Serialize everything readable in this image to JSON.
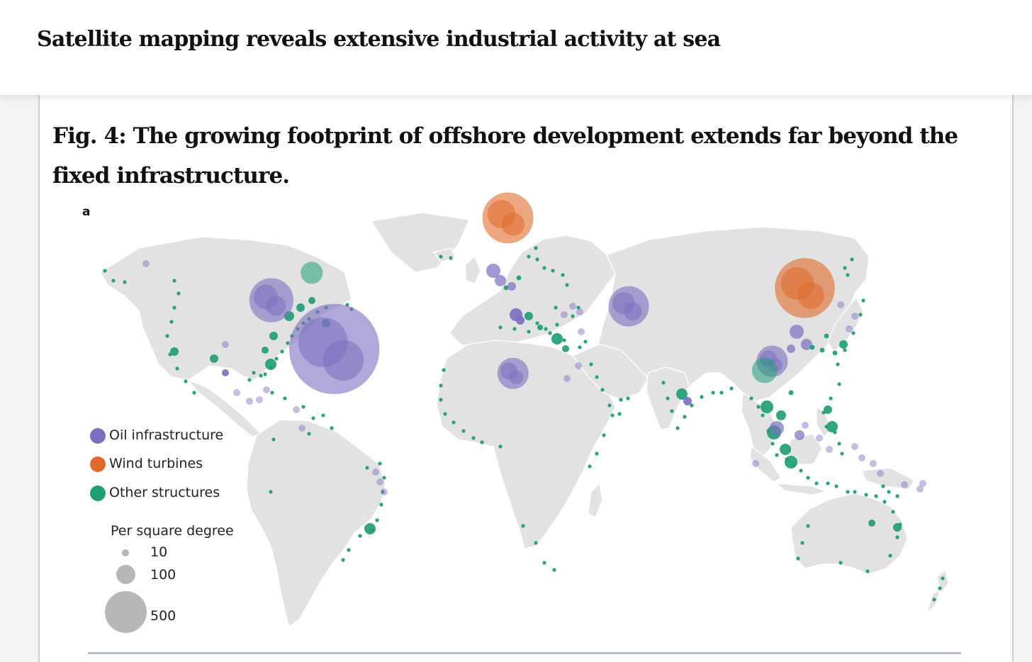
{
  "article_title": "Satellite mapping reveals extensive industrial activity at sea",
  "figure": {
    "title": "Fig. 4: The growing footprint of offshore development extends far beyond the fixed infrastructure.",
    "panel_label": "a"
  },
  "legend": {
    "categories": [
      {
        "label": "Oil infrastructure",
        "color": "#7b6fc0"
      },
      {
        "label": "Wind turbines",
        "color": "#e06a2c"
      },
      {
        "label": "Other structures",
        "color": "#1f9e76"
      }
    ],
    "size_title": "Per square degree",
    "sizes": [
      {
        "value": 10,
        "label": "10"
      },
      {
        "value": 100,
        "label": "100"
      },
      {
        "value": 500,
        "label": "500"
      }
    ]
  },
  "map": {
    "land_color": "#e2e2e2",
    "hotspots": [
      {
        "name": "gulf-of-mexico",
        "type": "oil",
        "lon": -91,
        "lat": 28,
        "value": 120
      },
      {
        "name": "caribbean-venezuela",
        "type": "oil",
        "lon": -66,
        "lat": 12,
        "value": 500
      },
      {
        "name": "north-sea",
        "type": "wind",
        "lon": 3,
        "lat": 55,
        "value": 160
      },
      {
        "name": "east-china-sea",
        "type": "wind",
        "lon": 121,
        "lat": 32,
        "value": 220
      },
      {
        "name": "persian-gulf",
        "type": "oil",
        "lon": 51,
        "lat": 26,
        "value": 100
      },
      {
        "name": "gulf-of-guinea",
        "type": "oil",
        "lon": 5,
        "lat": 4,
        "value": 60
      },
      {
        "name": "south-china-sea",
        "type": "oil",
        "lon": 108,
        "lat": 8,
        "value": 60
      },
      {
        "name": "us-east-coast",
        "type": "other",
        "lon": -75,
        "lat": 37,
        "value": 30
      },
      {
        "name": "southeast-asia",
        "type": "other",
        "lon": 105,
        "lat": 5,
        "value": 40
      }
    ]
  }
}
